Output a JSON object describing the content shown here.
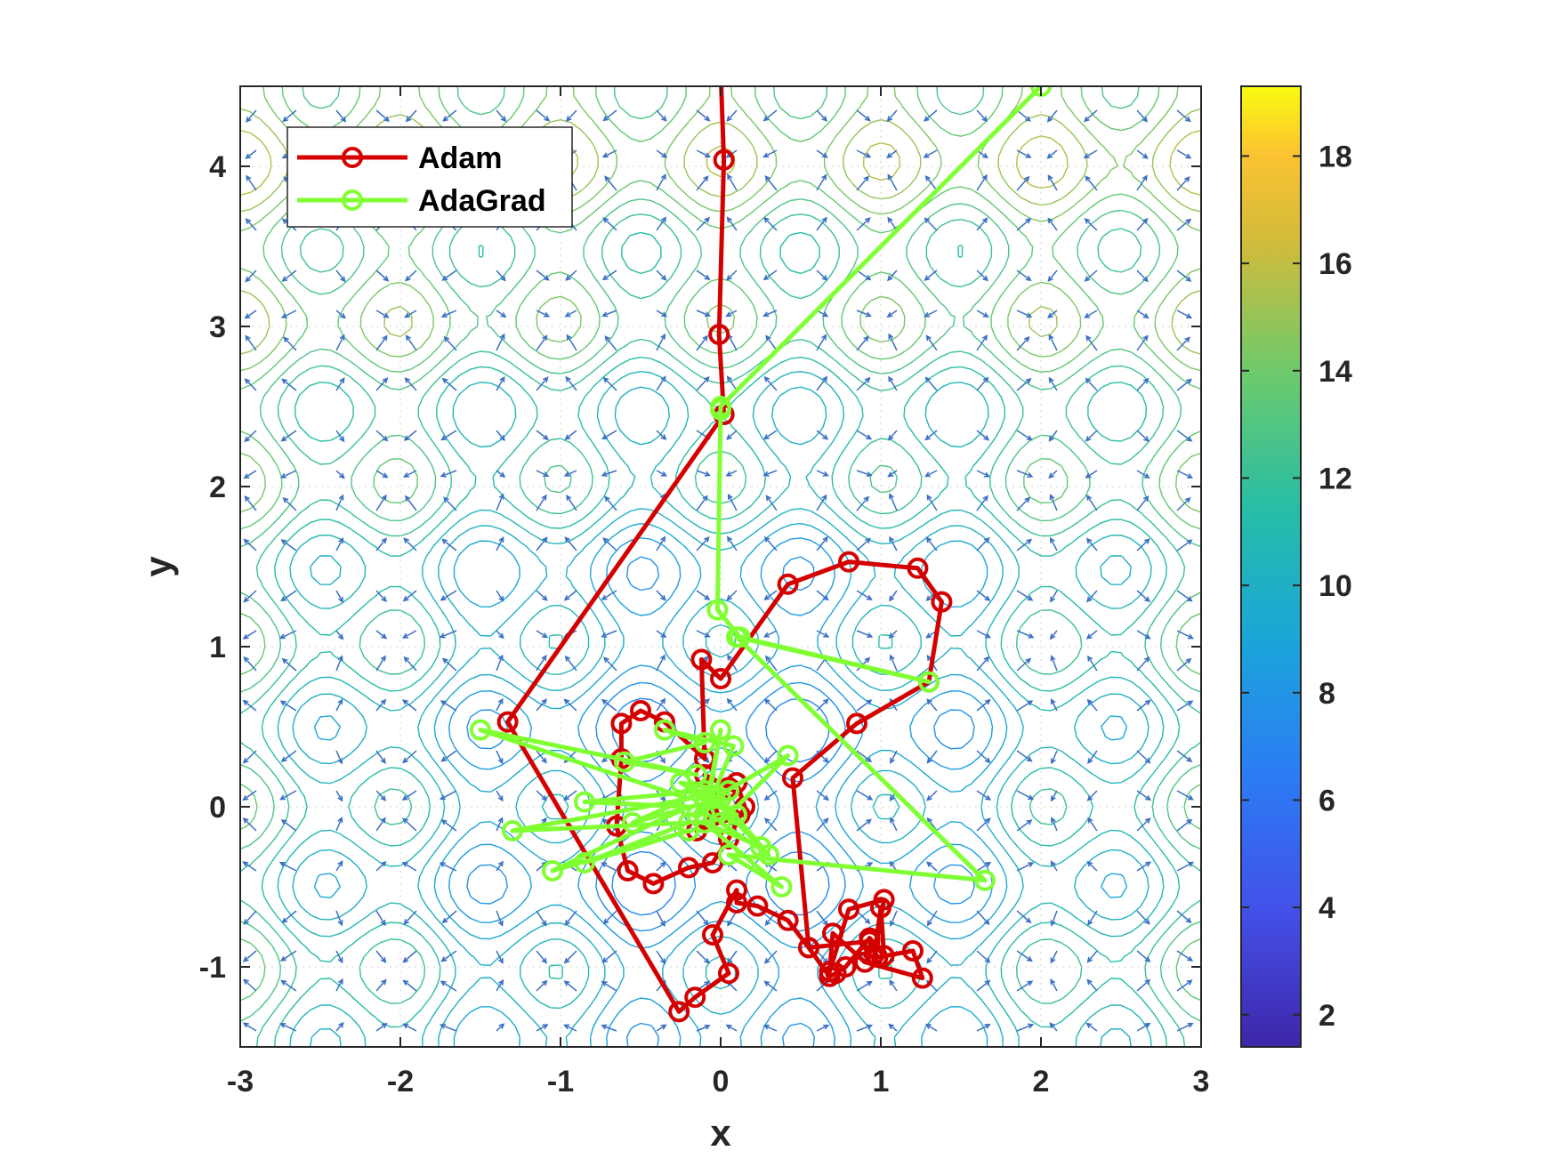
{
  "chart_data": {
    "type": "line",
    "title": "",
    "xlabel": "x",
    "ylabel": "y",
    "xlim": [
      -3,
      3
    ],
    "ylim": [
      -1.5,
      4.5
    ],
    "x_ticks": [
      "-3",
      "-2",
      "-1",
      "0",
      "1",
      "2",
      "3"
    ],
    "y_ticks": [
      "-1",
      "0",
      "1",
      "2",
      "3",
      "4"
    ],
    "grid": "dotted",
    "background": "contour plot with gradient quiver arrows",
    "legend_location": "top-left",
    "colorbar": {
      "range": [
        1.4,
        19.3
      ],
      "ticks": [
        "2",
        "4",
        "6",
        "8",
        "10",
        "12",
        "14",
        "16",
        "18"
      ],
      "colormap": "parula"
    },
    "series": [
      {
        "name": "Adam",
        "color": "#d40000",
        "marker": "circle",
        "points": [
          [
            0.0,
            4.6
          ],
          [
            0.02,
            4.04
          ],
          [
            -0.01,
            2.95
          ],
          [
            0.02,
            2.45
          ],
          [
            -1.33,
            0.53
          ],
          [
            -0.26,
            -1.28
          ],
          [
            -0.16,
            -1.19
          ],
          [
            0.05,
            -1.04
          ],
          [
            -0.05,
            -0.8
          ],
          [
            0.1,
            -0.52
          ],
          [
            0.1,
            -0.6
          ],
          [
            0.23,
            -0.62
          ],
          [
            0.42,
            -0.71
          ],
          [
            0.55,
            -0.88
          ],
          [
            0.68,
            -1.06
          ],
          [
            0.72,
            -1.04
          ],
          [
            0.78,
            -1.0
          ],
          [
            0.93,
            -0.82
          ],
          [
            1.02,
            -0.93
          ],
          [
            1.0,
            -0.63
          ],
          [
            0.96,
            -0.92
          ],
          [
            1.02,
            -0.58
          ],
          [
            0.8,
            -0.64
          ],
          [
            0.68,
            -1.03
          ],
          [
            0.7,
            -0.79
          ],
          [
            0.9,
            -0.97
          ],
          [
            1.26,
            -1.07
          ],
          [
            1.2,
            -0.9
          ],
          [
            0.98,
            -0.94
          ],
          [
            0.93,
            -0.84
          ],
          [
            0.55,
            -0.88
          ],
          [
            0.45,
            0.18
          ],
          [
            0.85,
            0.52
          ],
          [
            1.3,
            0.78
          ],
          [
            1.38,
            1.28
          ],
          [
            1.23,
            1.49
          ],
          [
            0.8,
            1.53
          ],
          [
            0.42,
            1.39
          ],
          [
            0.0,
            0.8
          ],
          [
            -0.12,
            0.92
          ],
          [
            -0.1,
            0.3
          ],
          [
            -0.35,
            0.53
          ],
          [
            -0.5,
            0.6
          ],
          [
            -0.62,
            0.52
          ],
          [
            -0.62,
            0.3
          ],
          [
            -0.65,
            -0.12
          ],
          [
            -0.58,
            -0.4
          ],
          [
            -0.42,
            -0.48
          ],
          [
            -0.2,
            -0.38
          ],
          [
            -0.05,
            -0.35
          ],
          [
            0.05,
            -0.2
          ],
          [
            0.15,
            0.0
          ],
          [
            0.1,
            0.15
          ],
          [
            -0.05,
            0.05
          ],
          [
            0.05,
            0.12
          ],
          [
            -0.1,
            0.2
          ],
          [
            0.0,
            -0.1
          ],
          [
            0.12,
            -0.05
          ],
          [
            -0.15,
            -0.15
          ],
          [
            0.0,
            0.05
          ]
        ]
      },
      {
        "name": "AdaGrad",
        "color": "#80ff33",
        "marker": "circle",
        "points": [
          [
            2.0,
            4.5
          ],
          [
            0.0,
            2.5
          ],
          [
            0.0,
            2.48
          ],
          [
            -0.02,
            1.23
          ],
          [
            0.12,
            1.06
          ],
          [
            1.3,
            0.78
          ],
          [
            0.1,
            1.06
          ],
          [
            1.65,
            -0.46
          ],
          [
            0.05,
            -0.3
          ],
          [
            0.38,
            -0.5
          ],
          [
            -0.1,
            -0.1
          ],
          [
            0.0,
            0.48
          ],
          [
            -0.1,
            -0.05
          ],
          [
            0.08,
            0.38
          ],
          [
            -0.35,
            0.48
          ],
          [
            -0.1,
            0.4
          ],
          [
            -0.6,
            0.28
          ],
          [
            -0.15,
            0.2
          ],
          [
            -1.5,
            0.48
          ],
          [
            -0.2,
            0.05
          ],
          [
            -1.3,
            -0.15
          ],
          [
            -0.2,
            -0.1
          ],
          [
            -0.85,
            -0.35
          ],
          [
            -0.2,
            -0.15
          ],
          [
            -1.05,
            -0.4
          ],
          [
            -0.2,
            0.0
          ],
          [
            -0.85,
            0.03
          ],
          [
            -0.1,
            0.1
          ],
          [
            -0.55,
            -0.1
          ],
          [
            0.0,
            0.05
          ],
          [
            0.3,
            -0.3
          ],
          [
            0.0,
            -0.1
          ],
          [
            0.42,
            0.32
          ],
          [
            -0.05,
            0.05
          ],
          [
            0.25,
            -0.25
          ],
          [
            -0.1,
            -0.1
          ],
          [
            0.1,
            -0.05
          ],
          [
            -0.25,
            0.15
          ],
          [
            0.05,
            0.1
          ],
          [
            -0.15,
            -0.05
          ]
        ]
      }
    ]
  }
}
